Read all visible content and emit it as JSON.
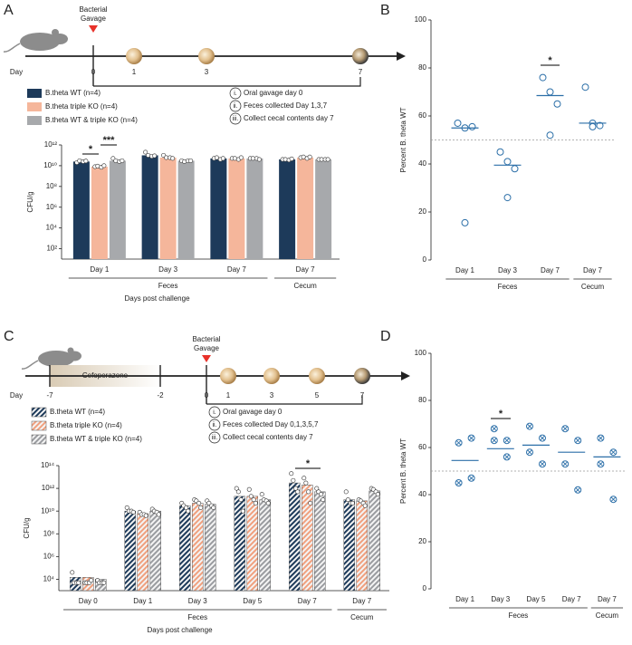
{
  "chart_data": [
    {
      "type": "bar",
      "panel": "A",
      "log_scale": true,
      "hatch": false,
      "ylabel": "CFU/g",
      "xlabel": "Days post challenge",
      "categories": [
        "Day 1",
        "Day 3",
        "Day 7",
        "Day 7"
      ],
      "group_labels": [
        "Feces",
        "Feces",
        "Feces",
        "Cecum"
      ],
      "ylim": [
        10,
        1000000000000
      ],
      "yticks": [
        {
          "value": 100,
          "label": "10²"
        },
        {
          "value": 10000,
          "label": "10⁴"
        },
        {
          "value": 1000000,
          "label": "10⁶"
        },
        {
          "value": 100000000,
          "label": "10⁸"
        },
        {
          "value": 10000000000,
          "label": "10¹⁰"
        },
        {
          "value": 1000000000000,
          "label": "10¹²"
        }
      ],
      "series": [
        {
          "name": "B.theta WT (n=4)",
          "color": "#1d3a5a",
          "values": [
            25000000000,
            100000000000,
            50000000000,
            40000000000
          ],
          "points": [
            [
              20000000000,
              30000000000,
              25000000000,
              28000000000
            ],
            [
              200000000000,
              100000000000,
              80000000000,
              90000000000
            ],
            [
              50000000000,
              60000000000,
              40000000000,
              50000000000
            ],
            [
              40000000000,
              40000000000,
              35000000000,
              45000000000
            ]
          ]
        },
        {
          "name": "B.theta triple KO (n=4)",
          "color": "#f5b69b",
          "values": [
            8000000000,
            60000000000,
            50000000000,
            60000000000
          ],
          "points": [
            [
              8000000000,
              9000000000,
              7000000000,
              10000000000
            ],
            [
              100000000000,
              60000000000,
              60000000000,
              50000000000
            ],
            [
              50000000000,
              50000000000,
              40000000000,
              60000000000
            ],
            [
              60000000000,
              70000000000,
              50000000000,
              70000000000
            ]
          ]
        },
        {
          "name": "B.theta WT & triple KO (n=4)",
          "color": "#a7a9ac",
          "values": [
            30000000000,
            30000000000,
            50000000000,
            40000000000
          ],
          "points": [
            [
              50000000000,
              30000000000,
              25000000000,
              30000000000
            ],
            [
              30000000000,
              25000000000,
              30000000000,
              30000000000
            ],
            [
              50000000000,
              50000000000,
              50000000000,
              40000000000
            ],
            [
              40000000000,
              40000000000,
              40000000000,
              40000000000
            ]
          ]
        }
      ],
      "annotations": [
        "*",
        "***"
      ]
    },
    {
      "type": "scatter",
      "panel": "B",
      "marker": "circle",
      "color": "#2c6fa8",
      "ylabel": "Percent B. theta WT",
      "categories": [
        "Day 1",
        "Day 3",
        "Day 7",
        "Day 7"
      ],
      "group_labels": [
        "Feces",
        "Feces",
        "Feces",
        "Cecum"
      ],
      "ylim": [
        0,
        100
      ],
      "yticks": [
        0,
        20,
        40,
        60,
        80,
        100
      ],
      "reference_line": 50,
      "points": [
        [
          57,
          55,
          55.5,
          15.5
        ],
        [
          45,
          41,
          38,
          26
        ],
        [
          76,
          70,
          65,
          52
        ],
        [
          72,
          57,
          56,
          55.5
        ]
      ],
      "means": [
        55,
        39.5,
        68.5,
        57
      ],
      "annotations": [
        "*"
      ]
    },
    {
      "type": "bar",
      "panel": "C",
      "log_scale": true,
      "hatch": true,
      "ylabel": "CFU/g",
      "xlabel": "Days post challenge",
      "categories": [
        "Day 0",
        "Day 1",
        "Day 3",
        "Day 5",
        "Day 7",
        "Day 7"
      ],
      "group_labels": [
        "Feces",
        "Feces",
        "Feces",
        "Feces",
        "Feces",
        "Cecum"
      ],
      "ylim": [
        1000,
        100000000000000
      ],
      "yticks": [
        {
          "value": 10000,
          "label": "10⁴"
        },
        {
          "value": 1000000,
          "label": "10⁶"
        },
        {
          "value": 100000000,
          "label": "10⁸"
        },
        {
          "value": 10000000000,
          "label": "10¹⁰"
        },
        {
          "value": 1000000000000,
          "label": "10¹²"
        },
        {
          "value": 100000000000000,
          "label": "10¹⁴"
        }
      ],
      "series": [
        {
          "name": "B.theta WT (n=4)",
          "color": "#1d3a5a",
          "values": [
            15000,
            10000000000,
            30000000000,
            200000000000,
            3000000000000,
            100000000000
          ],
          "points": [
            [
              40000,
              5000,
              5000,
              5000
            ],
            [
              20000000000,
              10000000000,
              10000000000,
              8000000000
            ],
            [
              50000000000,
              30000000000,
              20000000000,
              10000000000
            ],
            [
              1000000000000,
              500000000000,
              100000000000,
              10000000000
            ],
            [
              20000000000000,
              5000000000000,
              1000000000000,
              500000000000
            ],
            [
              500000000000,
              100000000000,
              50000000000,
              50000000000
            ]
          ]
        },
        {
          "name": "B.theta triple KO (n=4)",
          "color": "#f0a07e",
          "values": [
            15000,
            6000000000,
            50000000000,
            200000000000,
            2000000000000,
            80000000000
          ],
          "points": [
            [
              5000,
              5000,
              5000,
              8000
            ],
            [
              8000000000,
              5000000000,
              5000000000,
              4000000000
            ],
            [
              100000000000,
              80000000000,
              50000000000,
              20000000000
            ],
            [
              800000000000,
              200000000000,
              100000000000,
              50000000000
            ],
            [
              8000000000000,
              3000000000000,
              500000000000,
              50000000000
            ],
            [
              100000000000,
              80000000000,
              50000000000,
              30000000000
            ]
          ]
        },
        {
          "name": "B.theta WT & triple KO (n=4)",
          "color": "#9a9ca0",
          "values": [
            10000,
            10000000000,
            40000000000,
            100000000000,
            500000000000,
            600000000000
          ],
          "points": [
            [
              8000,
              5000,
              5000,
              5000
            ],
            [
              15000000000,
              10000000000,
              8000000000,
              5000000000
            ],
            [
              80000000000,
              50000000000,
              30000000000,
              20000000000
            ],
            [
              300000000000,
              100000000000,
              80000000000,
              50000000000
            ],
            [
              1000000000000,
              500000000000,
              300000000000,
              100000000000
            ],
            [
              1000000000000,
              800000000000,
              500000000000,
              300000000000
            ]
          ]
        }
      ],
      "annotations": [
        "*"
      ]
    },
    {
      "type": "scatter",
      "panel": "D",
      "marker": "circle-x",
      "color": "#2c6fa8",
      "ylabel": "Percent B. theta WT",
      "categories": [
        "Day 1",
        "Day 3",
        "Day 5",
        "Day 7",
        "Day 7"
      ],
      "group_labels": [
        "Feces",
        "Feces",
        "Feces",
        "Feces",
        "Cecum"
      ],
      "ylim": [
        0,
        100
      ],
      "yticks": [
        0,
        20,
        40,
        60,
        80,
        100
      ],
      "reference_line": 50,
      "points": [
        [
          62,
          64,
          45,
          47
        ],
        [
          68,
          63,
          63,
          56
        ],
        [
          69,
          64,
          58,
          53
        ],
        [
          68,
          63,
          53,
          42
        ],
        [
          64,
          58,
          53,
          38
        ]
      ],
      "means": [
        54.5,
        59.5,
        61,
        58,
        56
      ],
      "annotations": [
        "*"
      ]
    }
  ],
  "timelines": [
    {
      "gavage_lines": [
        "Bacterial",
        "Gavage"
      ],
      "day_label": "Day",
      "days": [
        0,
        1,
        3,
        7
      ],
      "steps": [
        {
          "marker": "i.",
          "text": "Oral gavage day 0"
        },
        {
          "marker": "ii.",
          "text": "Feces collected Day 1,3,7"
        },
        {
          "marker": "iii.",
          "text": "Collect cecal contents day 7"
        }
      ]
    },
    {
      "gavage_lines": [
        "Bacterial",
        "Gavage"
      ],
      "day_label": "Day",
      "treatment": "Cefoperazone",
      "days": [
        -7,
        -2,
        0,
        1,
        3,
        5,
        7
      ],
      "steps": [
        {
          "marker": "i.",
          "text": "Oral gavage day 0"
        },
        {
          "marker": "ii.",
          "text": "Feces collected Day 0,1,3,5,7"
        },
        {
          "marker": "iii.",
          "text": "Collect cecal contents day 7"
        }
      ]
    }
  ]
}
